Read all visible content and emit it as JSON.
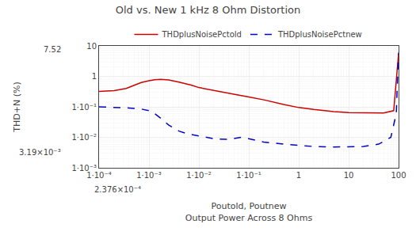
{
  "chart_data": {
    "type": "line",
    "title": "Old vs. New 1 kHz 8 Ohm Distortion",
    "xlabel": [
      "Poutold, Poutnew",
      "Output Power Across 8 Ohms"
    ],
    "ylabel": "THD+N (%)",
    "log": true,
    "grid": true,
    "legend": "top",
    "xlim": [
      0.0001,
      100
    ],
    "ylim": [
      0.001,
      10
    ],
    "xticks": [
      {
        "value": 0.0001,
        "label": "1·10⁻⁴"
      },
      {
        "value": 0.001,
        "label": "1·10⁻³"
      },
      {
        "value": 0.01,
        "label": "1·10⁻²"
      },
      {
        "value": 0.1,
        "label": "1·10⁻¹"
      },
      1,
      10,
      100
    ],
    "yticks": [
      {
        "value": 0.001,
        "label": "1·10⁻³"
      },
      {
        "value": 0.01,
        "label": "1·10⁻²"
      },
      {
        "value": 0.1,
        "label": "1·10⁻¹"
      },
      1,
      10
    ],
    "series": [
      {
        "name": "THDplusNoisePctold",
        "color": "#cc0000",
        "line_style": "solid",
        "x": [
          0.0001,
          0.0002,
          0.00035,
          0.0005,
          0.0007,
          0.001,
          0.0013,
          0.0017,
          0.0025,
          0.004,
          0.007,
          0.01,
          0.02,
          0.05,
          0.1,
          0.2,
          0.5,
          1.0,
          2.0,
          5.0,
          10.0,
          20.0,
          50.0,
          80.0,
          100.0
        ],
        "values": [
          0.32,
          0.34,
          0.4,
          0.5,
          0.63,
          0.72,
          0.78,
          0.8,
          0.76,
          0.65,
          0.52,
          0.43,
          0.34,
          0.26,
          0.21,
          0.17,
          0.12,
          0.095,
          0.082,
          0.07,
          0.065,
          0.063,
          0.063,
          0.075,
          5.5
        ]
      },
      {
        "name": "THDplusNoisePctnew",
        "color": "#0000cc",
        "line_style": "dashed",
        "x": [
          0.0001,
          0.0002,
          0.0004,
          0.0007,
          0.001,
          0.0013,
          0.0018,
          0.0025,
          0.004,
          0.006,
          0.01,
          0.02,
          0.04,
          0.07,
          0.1,
          0.2,
          0.5,
          1.0,
          2.0,
          5.0,
          10.0,
          20.0,
          40.0,
          70.0,
          90.0,
          100.0
        ],
        "values": [
          0.1,
          0.098,
          0.092,
          0.085,
          0.075,
          0.06,
          0.04,
          0.025,
          0.016,
          0.013,
          0.011,
          0.009,
          0.0085,
          0.01,
          0.009,
          0.007,
          0.006,
          0.0055,
          0.005,
          0.0048,
          0.0048,
          0.005,
          0.006,
          0.01,
          0.06,
          6.0
        ]
      }
    ],
    "annotations": [
      {
        "text": "7.52",
        "axis": "y",
        "value": 7.52
      },
      {
        "text": "3.19×10⁻³",
        "axis": "y",
        "value": 0.00319
      },
      {
        "text": "2.376×10⁻⁴",
        "axis": "x",
        "value": 0.0002376
      }
    ]
  }
}
